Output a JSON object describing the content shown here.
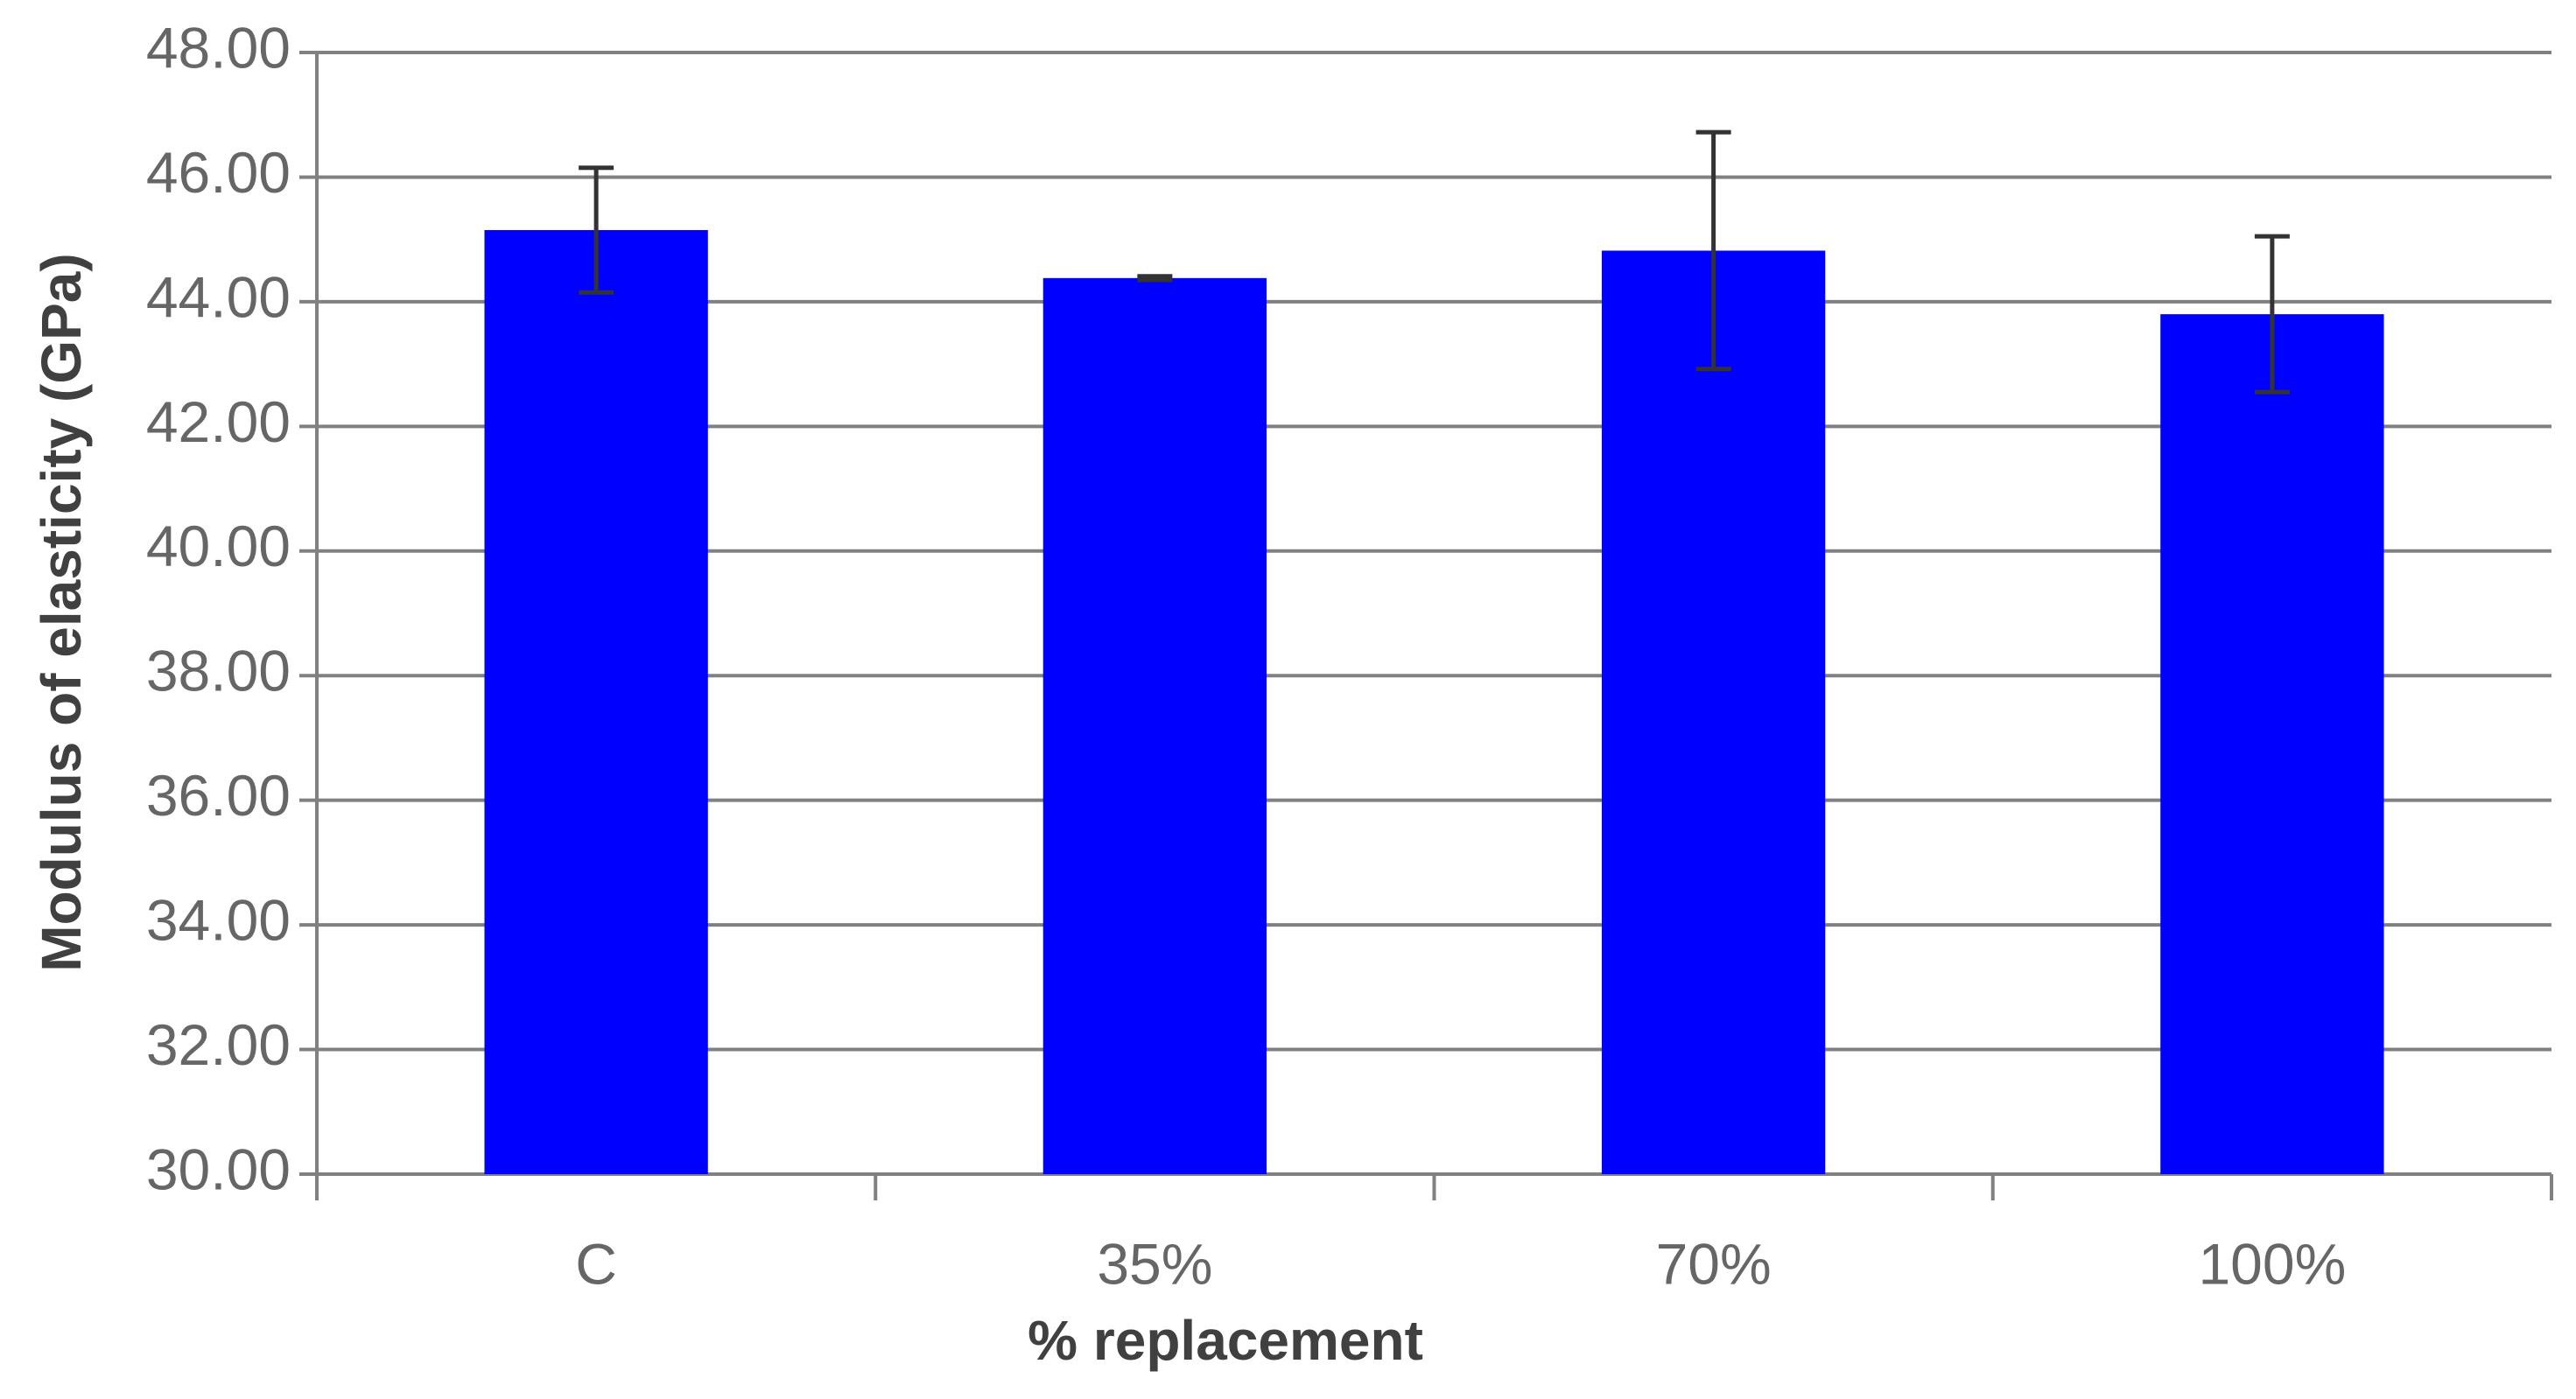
{
  "chart_data": {
    "type": "bar",
    "x_label": "% replacement",
    "y_label": "Modulus of elasticity (GPa)",
    "categories": [
      "C",
      "35%",
      "70%",
      "100%"
    ],
    "values": [
      45.15,
      44.38,
      44.82,
      43.8
    ],
    "errors": [
      1.0,
      0.03,
      1.9,
      1.25
    ],
    "color": "#0000ff",
    "ylim": [
      30,
      48
    ],
    "yticks": [
      {
        "value": 30,
        "label": "30.00"
      },
      {
        "value": 32,
        "label": "32.00"
      },
      {
        "value": 34,
        "label": "34.00"
      },
      {
        "value": 36,
        "label": "36.00"
      },
      {
        "value": 38,
        "label": "38.00"
      },
      {
        "value": 40,
        "label": "40.00"
      },
      {
        "value": 42,
        "label": "42.00"
      },
      {
        "value": 44,
        "label": "44.00"
      },
      {
        "value": 46,
        "label": "46.00"
      },
      {
        "value": 48,
        "label": "48.00"
      }
    ],
    "grid": true
  }
}
